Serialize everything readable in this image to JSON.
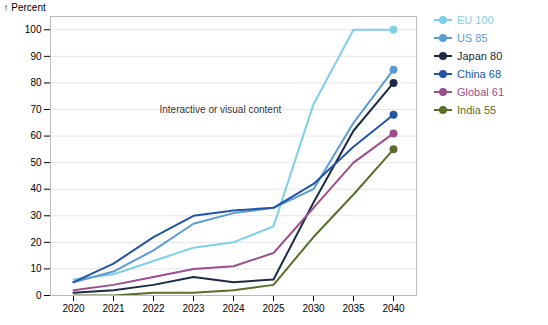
{
  "chart_data": {
    "type": "line",
    "categories": [
      "2020",
      "2021",
      "2022",
      "2023",
      "2024",
      "2025",
      "2030",
      "2035",
      "2040"
    ],
    "series": [
      {
        "name": "EU 100",
        "color": "#7ECFE8",
        "values": [
          6,
          8,
          13,
          18,
          20,
          26,
          72,
          100,
          100
        ]
      },
      {
        "name": "US 85",
        "color": "#5B9BD5",
        "values": [
          5,
          9,
          17,
          27,
          31,
          33,
          40,
          65,
          85
        ]
      },
      {
        "name": "Japan 80",
        "color": "#1C2B45",
        "values": [
          1,
          2,
          4,
          7,
          5,
          6,
          35,
          62,
          80
        ]
      },
      {
        "name": "China 68",
        "color": "#2255A4",
        "values": [
          5,
          12,
          22,
          30,
          32,
          33,
          42,
          56,
          68
        ]
      },
      {
        "name": "Global 61",
        "color": "#9B4E8E",
        "values": [
          2,
          4,
          7,
          10,
          11,
          16,
          33,
          50,
          61
        ]
      },
      {
        "name": "India 55",
        "color": "#5A6E2C",
        "values": [
          0,
          0,
          1,
          1,
          2,
          4,
          22,
          38,
          55
        ]
      }
    ],
    "y_label": "Percent",
    "ylim": [
      0,
      105
    ],
    "yticks": [
      0,
      10,
      20,
      30,
      40,
      50,
      60,
      70,
      80,
      90,
      100
    ],
    "grid": true,
    "legend": "right",
    "marker": "circle",
    "annotations": [
      {
        "text": "Interactive or visual content",
        "x": "2022",
        "y": 70
      }
    ]
  }
}
